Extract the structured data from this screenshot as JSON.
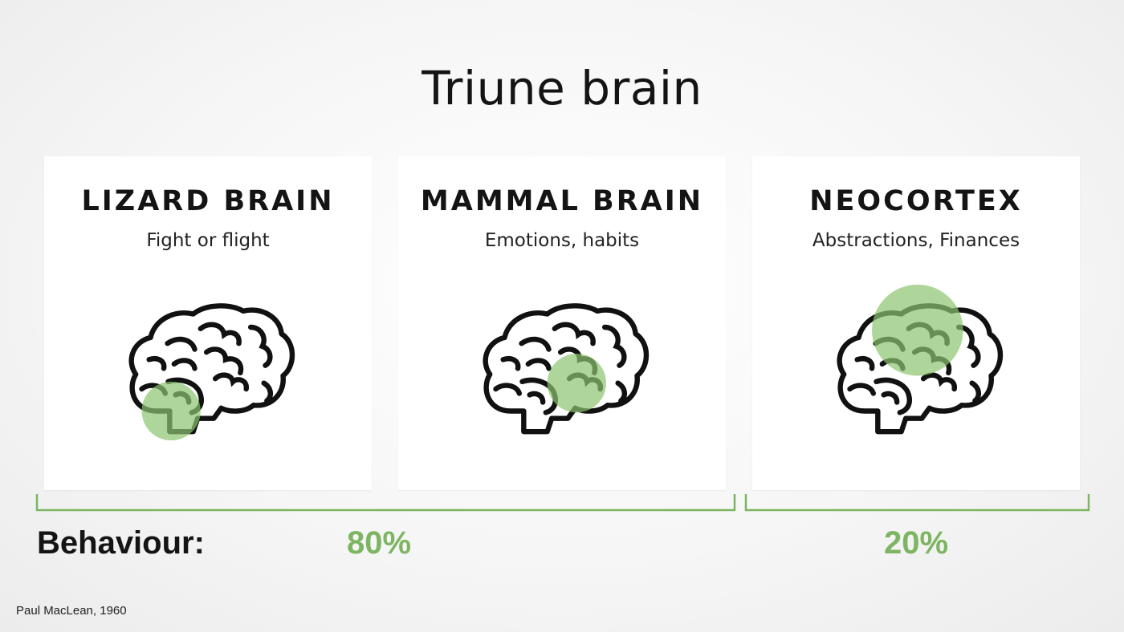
{
  "title": "Triune brain",
  "cards": [
    {
      "heading": "LIZARD BRAIN",
      "subtitle": "Fight or flight",
      "icon": "brain-icon",
      "highlight": "brainstem"
    },
    {
      "heading": "MAMMAL BRAIN",
      "subtitle": "Emotions, habits",
      "icon": "brain-icon",
      "highlight": "limbic"
    },
    {
      "heading": "NEOCORTEX",
      "subtitle": "Abstractions, Finances",
      "icon": "brain-icon",
      "highlight": "cortex"
    }
  ],
  "behaviour": {
    "label": "Behaviour:",
    "groups": [
      {
        "value": "80%",
        "spans": [
          "LIZARD BRAIN",
          "MAMMAL BRAIN"
        ]
      },
      {
        "value": "20%",
        "spans": [
          "NEOCORTEX"
        ]
      }
    ]
  },
  "credit": "Paul MacLean, 1960",
  "colors": {
    "accent_green": "#7db562",
    "highlight_green": "#a8d393",
    "text": "#141414",
    "card_bg": "#ffffff"
  }
}
